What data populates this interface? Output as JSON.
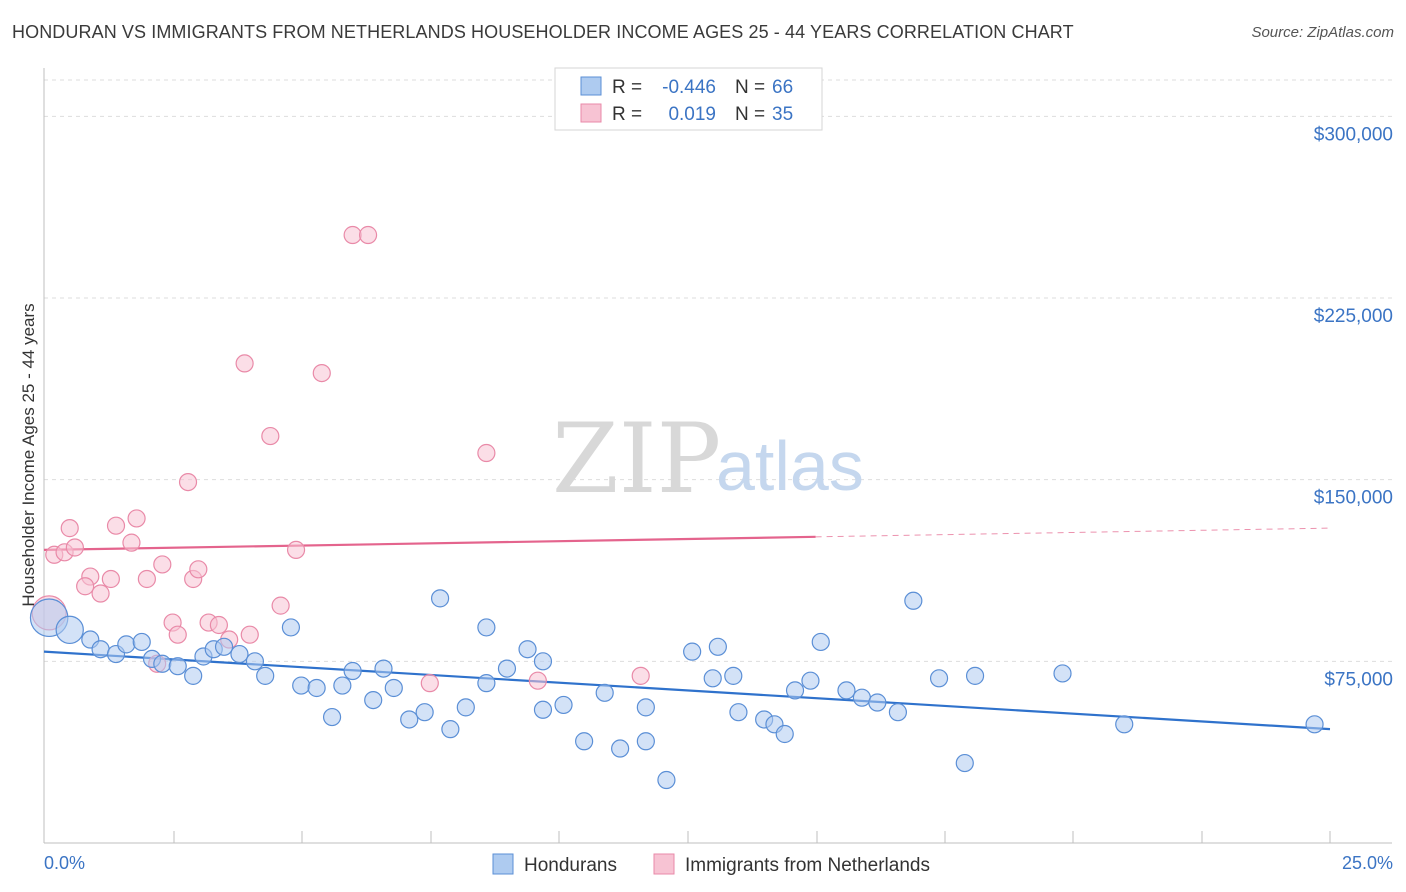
{
  "header": {
    "title": "HONDURAN VS IMMIGRANTS FROM NETHERLANDS HOUSEHOLDER INCOME AGES 25 - 44 YEARS CORRELATION CHART",
    "source": "Source: ZipAtlas.com"
  },
  "watermark": {
    "zip": "ZIP",
    "atlas": "atlas"
  },
  "colors": {
    "blue_fill": "#aecbf0",
    "blue_stroke": "#5b8fd6",
    "blue_line": "#2f72cc",
    "pink_fill": "#f7c3d3",
    "pink_stroke": "#e98aa8",
    "pink_line": "#e4648d",
    "tick_text": "#3b74c4",
    "grid": "#dddddd"
  },
  "legend": {
    "rows": [
      {
        "r_label": "R = ",
        "r_value": "-0.446",
        "n_label": "N = ",
        "n_value": "66"
      },
      {
        "r_label": "R = ",
        "r_value": "0.019",
        "n_label": "N = ",
        "n_value": "35"
      }
    ]
  },
  "bottom_legend": {
    "series1": "Hondurans",
    "series2": "Immigrants from Netherlands"
  },
  "chart_data": {
    "type": "scatter",
    "title": "HONDURAN VS IMMIGRANTS FROM NETHERLANDS HOUSEHOLDER INCOME AGES 25 - 44 YEARS CORRELATION CHART",
    "xlabel": "",
    "ylabel": "Householder Income Ages 25 - 44 years",
    "xlim": [
      0,
      25
    ],
    "ylim": [
      0,
      315000
    ],
    "x_tick_labels": [
      "0.0%",
      "25.0%"
    ],
    "y_ticks": [
      75000,
      150000,
      225000,
      300000
    ],
    "y_tick_labels": [
      "$75,000",
      "$150,000",
      "$225,000",
      "$300,000"
    ],
    "grid": true,
    "series": [
      {
        "name": "Hondurans",
        "color": "blue",
        "R": -0.446,
        "N": 66,
        "trend": {
          "x0": 0,
          "y0": 79000,
          "x1": 25,
          "y1": 47000,
          "solid_until": 25
        },
        "points": [
          [
            0.1,
            93000,
            2.2
          ],
          [
            0.5,
            88000,
            1.6
          ],
          [
            0.9,
            84000,
            1
          ],
          [
            1.1,
            80000,
            1
          ],
          [
            1.4,
            78000,
            1
          ],
          [
            1.6,
            82000,
            1
          ],
          [
            1.9,
            83000,
            1
          ],
          [
            2.1,
            76000,
            1
          ],
          [
            2.3,
            74000,
            1
          ],
          [
            2.6,
            73000,
            1
          ],
          [
            2.9,
            69000,
            1
          ],
          [
            3.1,
            77000,
            1
          ],
          [
            3.3,
            80000,
            1
          ],
          [
            3.5,
            81000,
            1
          ],
          [
            3.8,
            78000,
            1
          ],
          [
            4.1,
            75000,
            1
          ],
          [
            4.3,
            69000,
            1
          ],
          [
            4.8,
            89000,
            1
          ],
          [
            5.0,
            65000,
            1
          ],
          [
            5.3,
            64000,
            1
          ],
          [
            5.6,
            52000,
            1
          ],
          [
            5.8,
            65000,
            1
          ],
          [
            6.0,
            71000,
            1
          ],
          [
            6.4,
            59000,
            1
          ],
          [
            6.6,
            72000,
            1
          ],
          [
            6.8,
            64000,
            1
          ],
          [
            7.1,
            51000,
            1
          ],
          [
            7.4,
            54000,
            1
          ],
          [
            7.7,
            101000,
            1
          ],
          [
            7.9,
            47000,
            1
          ],
          [
            8.2,
            56000,
            1
          ],
          [
            8.6,
            66000,
            1
          ],
          [
            8.6,
            89000,
            1
          ],
          [
            9.0,
            72000,
            1
          ],
          [
            9.4,
            80000,
            1
          ],
          [
            9.7,
            55000,
            1
          ],
          [
            9.7,
            75000,
            1
          ],
          [
            10.1,
            57000,
            1
          ],
          [
            10.5,
            42000,
            1
          ],
          [
            10.9,
            62000,
            1
          ],
          [
            11.2,
            39000,
            1
          ],
          [
            11.7,
            42000,
            1
          ],
          [
            11.7,
            56000,
            1
          ],
          [
            12.1,
            26000,
            1
          ],
          [
            12.6,
            79000,
            1
          ],
          [
            13.0,
            68000,
            1
          ],
          [
            13.1,
            81000,
            1
          ],
          [
            13.4,
            69000,
            1
          ],
          [
            13.5,
            54000,
            1
          ],
          [
            14.0,
            51000,
            1
          ],
          [
            14.2,
            49000,
            1
          ],
          [
            14.4,
            45000,
            1
          ],
          [
            14.6,
            63000,
            1
          ],
          [
            14.9,
            67000,
            1
          ],
          [
            15.1,
            83000,
            1
          ],
          [
            15.6,
            63000,
            1
          ],
          [
            15.9,
            60000,
            1
          ],
          [
            16.2,
            58000,
            1
          ],
          [
            16.6,
            54000,
            1
          ],
          [
            17.4,
            68000,
            1
          ],
          [
            17.9,
            33000,
            1
          ],
          [
            18.1,
            69000,
            1
          ],
          [
            19.8,
            70000,
            1
          ],
          [
            21.0,
            49000,
            1
          ],
          [
            24.7,
            49000,
            1
          ],
          [
            16.9,
            100000,
            1
          ]
        ]
      },
      {
        "name": "Immigrants from Netherlands",
        "color": "pink",
        "R": 0.019,
        "N": 35,
        "trend": {
          "x0": 0,
          "y0": 121000,
          "x1": 25,
          "y1": 130000,
          "solid_until": 15
        },
        "points": [
          [
            0.1,
            95000,
            2.0
          ],
          [
            0.2,
            119000,
            1
          ],
          [
            0.4,
            120000,
            1
          ],
          [
            0.5,
            130000,
            1
          ],
          [
            0.6,
            122000,
            1
          ],
          [
            0.9,
            110000,
            1
          ],
          [
            0.8,
            106000,
            1
          ],
          [
            1.1,
            103000,
            1
          ],
          [
            1.4,
            131000,
            1
          ],
          [
            1.3,
            109000,
            1
          ],
          [
            1.7,
            124000,
            1
          ],
          [
            1.8,
            134000,
            1
          ],
          [
            2.0,
            109000,
            1
          ],
          [
            2.2,
            74000,
            1
          ],
          [
            2.3,
            115000,
            1
          ],
          [
            2.5,
            91000,
            1
          ],
          [
            2.6,
            86000,
            1
          ],
          [
            2.8,
            149000,
            1
          ],
          [
            2.9,
            109000,
            1
          ],
          [
            3.0,
            113000,
            1
          ],
          [
            3.2,
            91000,
            1
          ],
          [
            3.4,
            90000,
            1
          ],
          [
            3.6,
            84000,
            1
          ],
          [
            3.9,
            198000,
            1
          ],
          [
            4.0,
            86000,
            1
          ],
          [
            4.4,
            168000,
            1
          ],
          [
            4.6,
            98000,
            1
          ],
          [
            4.9,
            121000,
            1
          ],
          [
            5.4,
            194000,
            1
          ],
          [
            6.0,
            251000,
            1
          ],
          [
            6.3,
            251000,
            1
          ],
          [
            7.5,
            66000,
            1
          ],
          [
            9.6,
            67000,
            1
          ],
          [
            11.6,
            69000,
            1
          ],
          [
            8.6,
            161000,
            1
          ]
        ]
      }
    ]
  }
}
